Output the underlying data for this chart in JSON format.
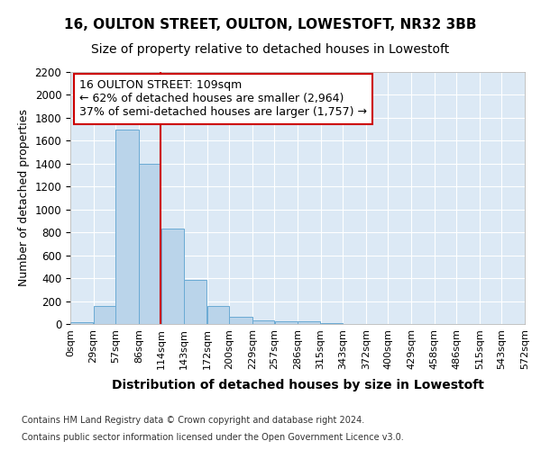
{
  "title1": "16, OULTON STREET, OULTON, LOWESTOFT, NR32 3BB",
  "title2": "Size of property relative to detached houses in Lowestoft",
  "xlabel": "Distribution of detached houses by size in Lowestoft",
  "ylabel": "Number of detached properties",
  "footer1": "Contains HM Land Registry data © Crown copyright and database right 2024.",
  "footer2": "Contains public sector information licensed under the Open Government Licence v3.0.",
  "annotation_line1": "16 OULTON STREET: 109sqm",
  "annotation_line2": "← 62% of detached houses are smaller (2,964)",
  "annotation_line3": "37% of semi-detached houses are larger (1,757) →",
  "bar_color": "#bad4ea",
  "bar_edge_color": "#6aaad4",
  "vline_color": "#cc0000",
  "vline_x": 114,
  "bin_edges": [
    0,
    29,
    57,
    86,
    114,
    143,
    172,
    200,
    229,
    257,
    286,
    315,
    343,
    372,
    400,
    429,
    458,
    486,
    515,
    543,
    572
  ],
  "bin_labels": [
    "0sqm",
    "29sqm",
    "57sqm",
    "86sqm",
    "114sqm",
    "143sqm",
    "172sqm",
    "200sqm",
    "229sqm",
    "257sqm",
    "286sqm",
    "315sqm",
    "343sqm",
    "372sqm",
    "400sqm",
    "429sqm",
    "458sqm",
    "486sqm",
    "515sqm",
    "543sqm",
    "572sqm"
  ],
  "bar_heights": [
    15,
    155,
    1700,
    1400,
    830,
    385,
    160,
    65,
    30,
    25,
    25,
    4,
    0,
    0,
    0,
    0,
    0,
    0,
    0,
    0
  ],
  "ylim": [
    0,
    2200
  ],
  "yticks": [
    0,
    200,
    400,
    600,
    800,
    1000,
    1200,
    1400,
    1600,
    1800,
    2000,
    2200
  ],
  "plot_bg_color": "#dce9f5",
  "grid_color": "#ffffff",
  "title1_fontsize": 11,
  "title2_fontsize": 10,
  "xlabel_fontsize": 10,
  "ylabel_fontsize": 9,
  "annotation_box_facecolor": "#ffffff",
  "annotation_box_edgecolor": "#cc0000",
  "annotation_fontsize": 9
}
